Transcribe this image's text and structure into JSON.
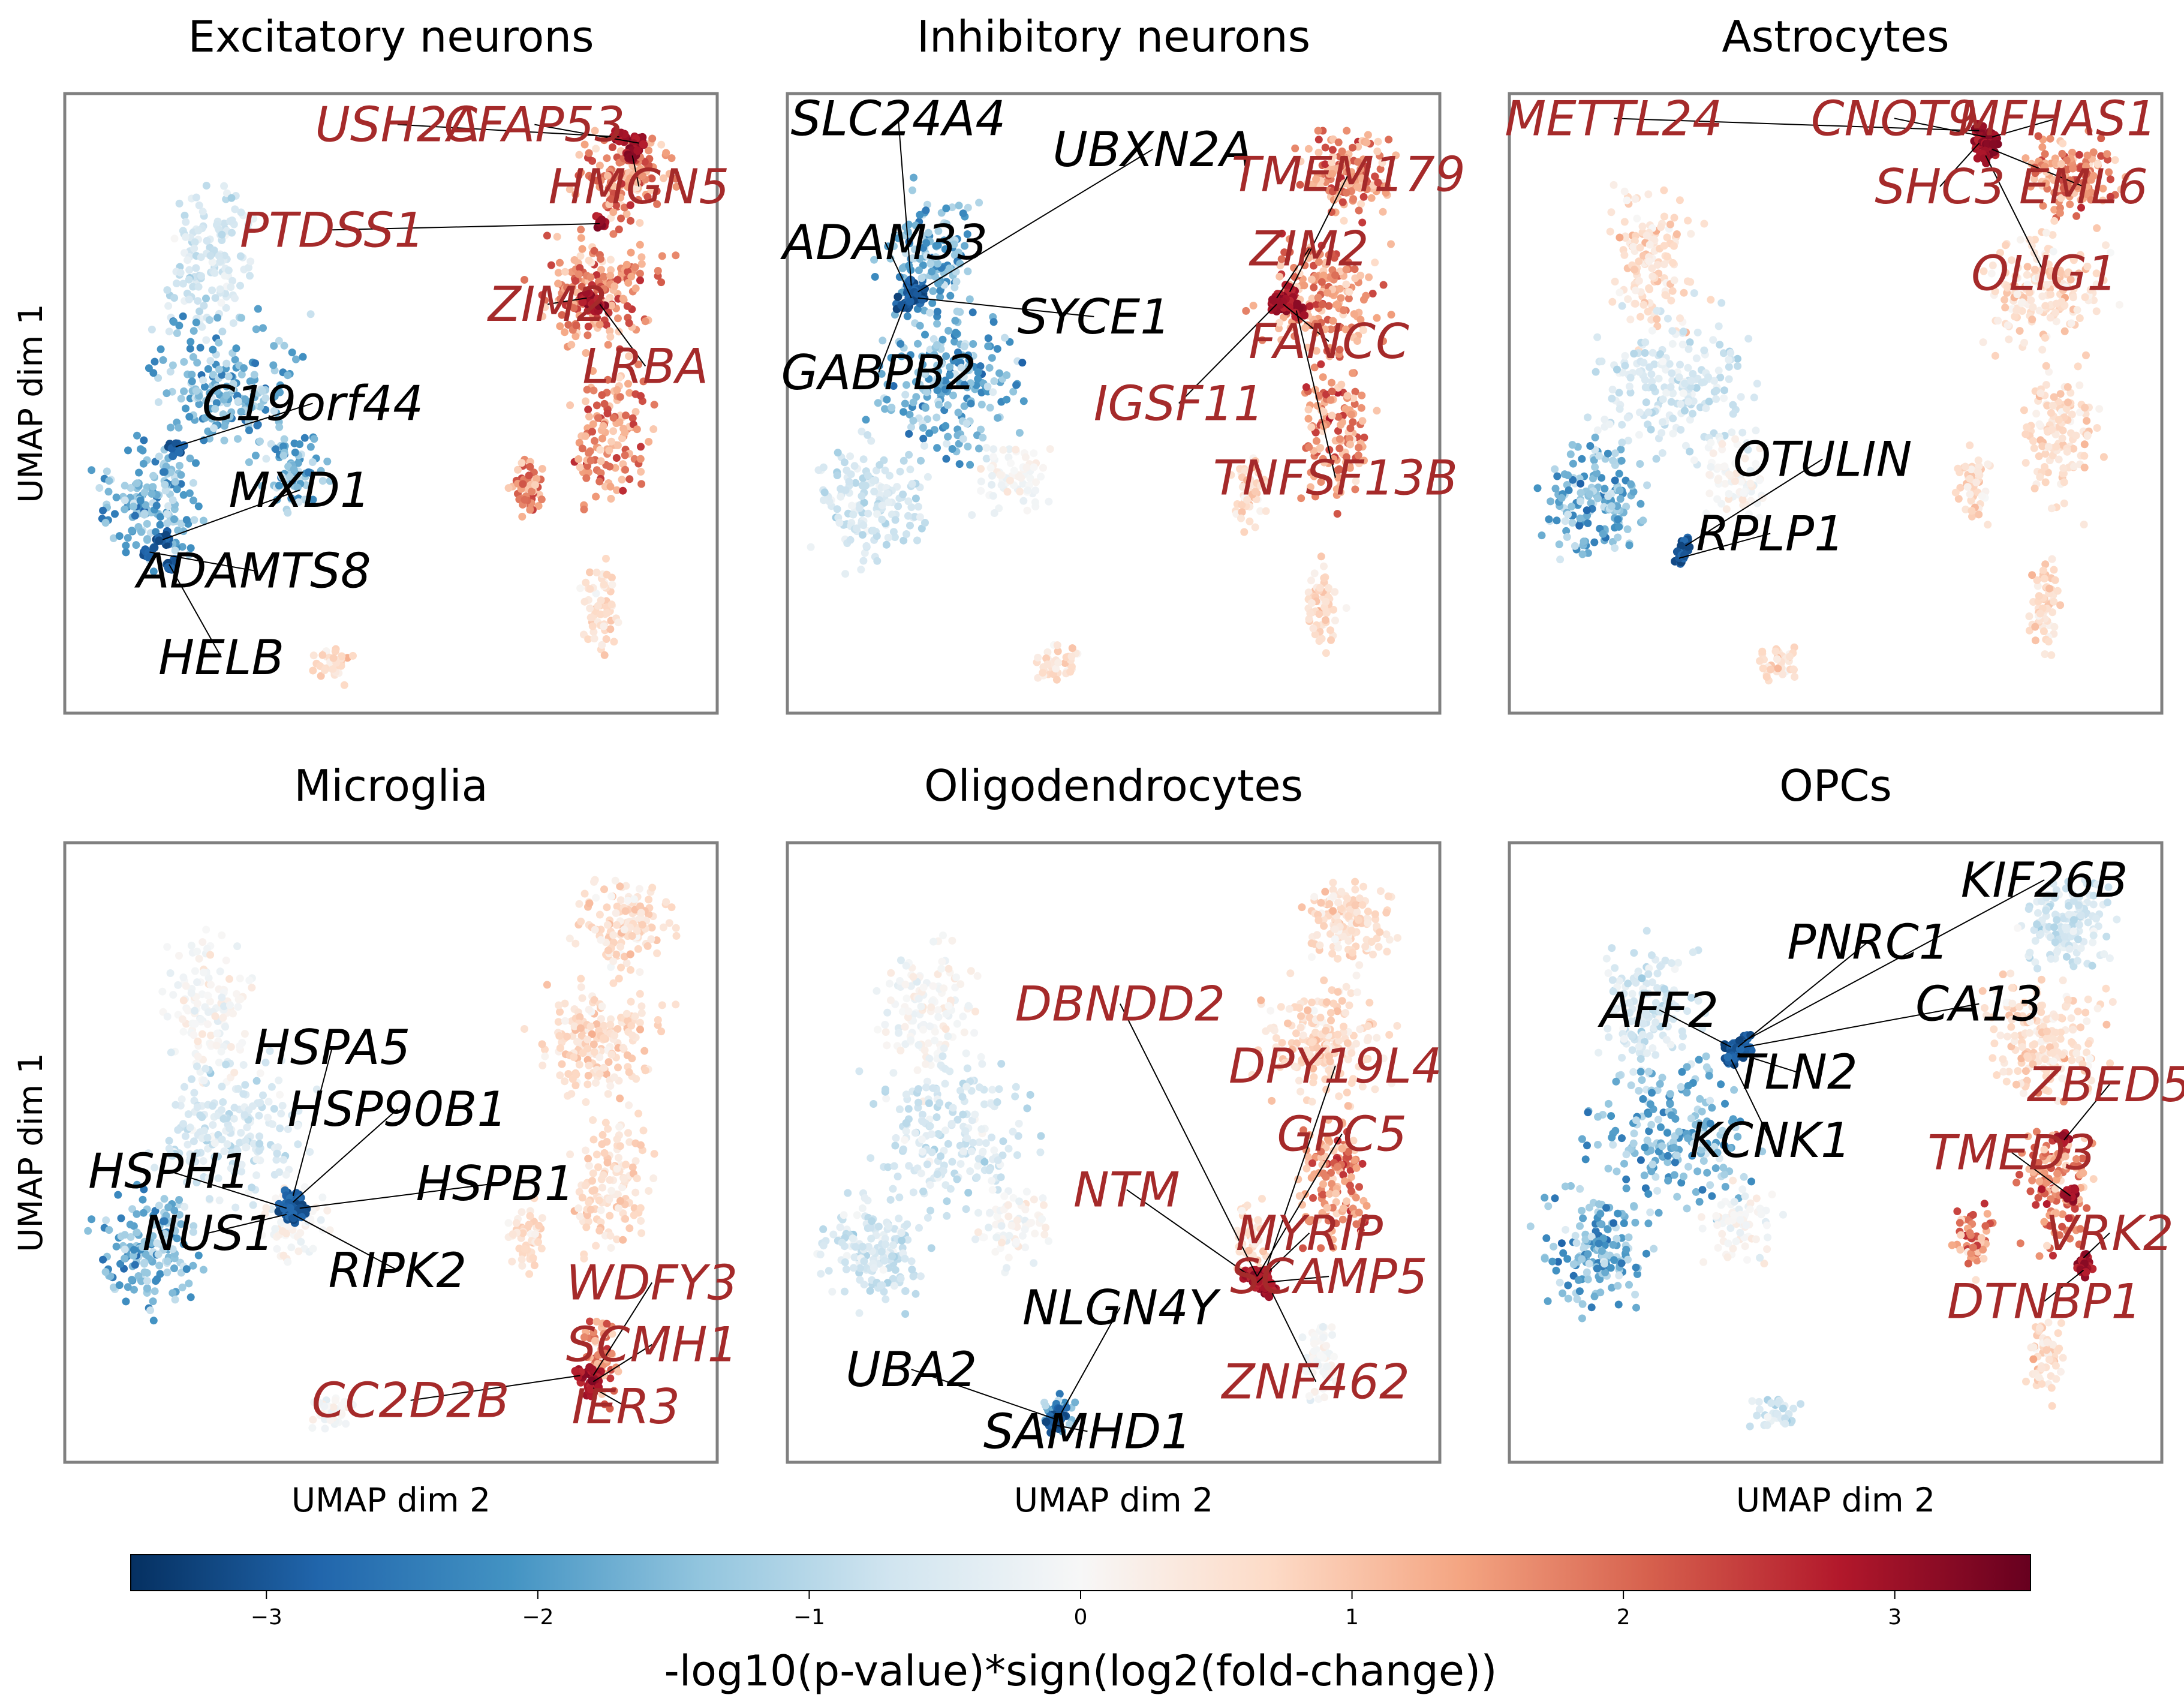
{
  "chart_data": {
    "type": "scatter",
    "description_of_axes": "UMAP embedding",
    "xlabel": "UMAP dim 2",
    "ylabel": "UMAP dim 1",
    "colormap": {
      "name": "RdBu_r",
      "low": "#053061",
      "mid": "#f7f7f7",
      "high": "#67001f"
    },
    "color_label": "-log10(p-value)*sign(log2(fold-change))",
    "color_range": [
      -3.5,
      3.5
    ],
    "color_ticks": [
      -3,
      -2,
      -1,
      0,
      1,
      2,
      3
    ],
    "color_tick_labels": [
      "−3",
      "−2",
      "−1",
      "0",
      "1",
      "2",
      "3"
    ],
    "label_colors": {
      "up": "#a52a2a",
      "down": "#000000"
    },
    "panels": [
      {
        "title": "Excitatory neurons",
        "pattern": {
          "up": [
            "rightA",
            "rightB",
            "rightC",
            "rightD"
          ],
          "down": [
            "leftB",
            "leftC",
            "leftD"
          ],
          "mild_up": [
            "bottomA",
            "bottomB"
          ],
          "mild_down": [
            "leftA"
          ]
        },
        "genes": [
          {
            "name": "USH2A",
            "dir": "up",
            "label": [
              0.51,
              0.05
            ],
            "point": [
              0.85,
              0.07
            ]
          },
          {
            "name": "CFAP53",
            "dir": "up",
            "label": [
              0.72,
              0.05
            ],
            "point": [
              0.88,
              0.08
            ]
          },
          {
            "name": "HMGN5",
            "dir": "up",
            "label": [
              0.88,
              0.15
            ],
            "point": [
              0.87,
              0.1
            ]
          },
          {
            "name": "PTDSS1",
            "dir": "up",
            "label": [
              0.41,
              0.22
            ],
            "point": [
              0.82,
              0.21
            ]
          },
          {
            "name": "ZIM2",
            "dir": "up",
            "label": [
              0.74,
              0.34
            ],
            "point": [
              0.8,
              0.33
            ]
          },
          {
            "name": "LRBA",
            "dir": "up",
            "label": [
              0.89,
              0.44
            ],
            "point": [
              0.82,
              0.34
            ]
          },
          {
            "name": "C19orf44",
            "dir": "down",
            "label": [
              0.38,
              0.5
            ],
            "point": [
              0.17,
              0.57
            ]
          },
          {
            "name": "MXD1",
            "dir": "down",
            "label": [
              0.36,
              0.64
            ],
            "point": [
              0.15,
              0.72
            ]
          },
          {
            "name": "ADAMTS8",
            "dir": "down",
            "label": [
              0.29,
              0.77
            ],
            "point": [
              0.13,
              0.74
            ]
          },
          {
            "name": "HELB",
            "dir": "down",
            "label": [
              0.24,
              0.91
            ],
            "point": [
              0.16,
              0.76
            ]
          }
        ]
      },
      {
        "title": "Inhibitory neurons",
        "pattern": {
          "up": [
            "rightA",
            "rightB",
            "rightC"
          ],
          "down": [
            "leftA",
            "leftB"
          ],
          "mild_up": [
            "rightD",
            "bottomA",
            "bottomB"
          ],
          "mild_down": [
            "leftC"
          ]
        },
        "genes": [
          {
            "name": "SLC24A4",
            "dir": "down",
            "label": [
              0.17,
              0.04
            ],
            "point": [
              0.19,
              0.31
            ]
          },
          {
            "name": "UBXN2A",
            "dir": "down",
            "label": [
              0.56,
              0.09
            ],
            "point": [
              0.2,
              0.32
            ]
          },
          {
            "name": "TMEM179",
            "dir": "up",
            "label": [
              0.86,
              0.13
            ],
            "point": [
              0.77,
              0.32
            ]
          },
          {
            "name": "ADAM33",
            "dir": "down",
            "label": [
              0.15,
              0.24
            ],
            "point": [
              0.19,
              0.33
            ]
          },
          {
            "name": "ZIM2",
            "dir": "up",
            "label": [
              0.8,
              0.25
            ],
            "point": [
              0.75,
              0.33
            ]
          },
          {
            "name": "SYCE1",
            "dir": "down",
            "label": [
              0.47,
              0.36
            ],
            "point": [
              0.2,
              0.33
            ]
          },
          {
            "name": "FANCC",
            "dir": "up",
            "label": [
              0.83,
              0.4
            ],
            "point": [
              0.76,
              0.34
            ]
          },
          {
            "name": "GABPB2",
            "dir": "down",
            "label": [
              0.14,
              0.45
            ],
            "point": [
              0.18,
              0.34
            ]
          },
          {
            "name": "IGSF11",
            "dir": "up",
            "label": [
              0.6,
              0.5
            ],
            "point": [
              0.75,
              0.34
            ]
          },
          {
            "name": "TNFSF13B",
            "dir": "up",
            "label": [
              0.84,
              0.62
            ],
            "point": [
              0.78,
              0.35
            ]
          }
        ]
      },
      {
        "title": "Astrocytes",
        "pattern": {
          "up": [
            "rightA"
          ],
          "down": [
            "leftC"
          ],
          "mild_up": [
            "rightB",
            "rightC",
            "rightD",
            "bottomA",
            "bottomB",
            "leftA"
          ],
          "mild_down": [
            "leftB"
          ]
        },
        "genes": [
          {
            "name": "METTL24",
            "dir": "up",
            "label": [
              0.16,
              0.04
            ],
            "point": [
              0.72,
              0.06
            ]
          },
          {
            "name": "CNOT9",
            "dir": "up",
            "label": [
              0.59,
              0.04
            ],
            "point": [
              0.73,
              0.07
            ]
          },
          {
            "name": "MFHAS1",
            "dir": "up",
            "label": [
              0.84,
              0.04
            ],
            "point": [
              0.74,
              0.07
            ]
          },
          {
            "name": "SHC3",
            "dir": "up",
            "label": [
              0.66,
              0.15
            ],
            "point": [
              0.72,
              0.08
            ]
          },
          {
            "name": "EML6",
            "dir": "up",
            "label": [
              0.88,
              0.15
            ],
            "point": [
              0.74,
              0.09
            ]
          },
          {
            "name": "OLIG1",
            "dir": "up",
            "label": [
              0.82,
              0.29
            ],
            "point": [
              0.73,
              0.1
            ]
          },
          {
            "name": "OTULIN",
            "dir": "down",
            "label": [
              0.48,
              0.59
            ],
            "point": [
              0.27,
              0.73
            ]
          },
          {
            "name": "RPLP1",
            "dir": "down",
            "label": [
              0.4,
              0.71
            ],
            "point": [
              0.26,
              0.75
            ]
          }
        ]
      },
      {
        "title": "Microglia",
        "pattern": {
          "up": [
            "bottomA"
          ],
          "down": [
            "leftC"
          ],
          "mild_up": [
            "rightA",
            "rightB",
            "rightC",
            "rightD"
          ],
          "mild_down": [
            "leftB"
          ]
        },
        "genes": [
          {
            "name": "HSPA5",
            "dir": "down",
            "label": [
              0.41,
              0.33
            ],
            "point": [
              0.35,
              0.57
            ]
          },
          {
            "name": "HSP90B1",
            "dir": "down",
            "label": [
              0.51,
              0.43
            ],
            "point": [
              0.35,
              0.58
            ]
          },
          {
            "name": "HSPH1",
            "dir": "down",
            "label": [
              0.16,
              0.53
            ],
            "point": [
              0.34,
              0.59
            ]
          },
          {
            "name": "HSPB1",
            "dir": "down",
            "label": [
              0.66,
              0.55
            ],
            "point": [
              0.36,
              0.59
            ]
          },
          {
            "name": "NUS1",
            "dir": "down",
            "label": [
              0.22,
              0.63
            ],
            "point": [
              0.34,
              0.6
            ]
          },
          {
            "name": "RIPK2",
            "dir": "down",
            "label": [
              0.51,
              0.69
            ],
            "point": [
              0.35,
              0.6
            ]
          },
          {
            "name": "WDFY3",
            "dir": "up",
            "label": [
              0.9,
              0.71
            ],
            "point": [
              0.81,
              0.86
            ]
          },
          {
            "name": "SCMH1",
            "dir": "up",
            "label": [
              0.9,
              0.81
            ],
            "point": [
              0.81,
              0.87
            ]
          },
          {
            "name": "CC2D2B",
            "dir": "up",
            "label": [
              0.53,
              0.9
            ],
            "point": [
              0.79,
              0.86
            ]
          },
          {
            "name": "IER3",
            "dir": "up",
            "label": [
              0.86,
              0.91
            ],
            "point": [
              0.81,
              0.88
            ]
          }
        ]
      },
      {
        "title": "Oligodendrocytes",
        "pattern": {
          "up": [
            "rightC"
          ],
          "down": [
            "bottomB"
          ],
          "mild_up": [
            "rightA",
            "rightB",
            "rightD"
          ],
          "mild_down": [
            "leftB",
            "leftC"
          ]
        },
        "genes": [
          {
            "name": "DBNDD2",
            "dir": "up",
            "label": [
              0.51,
              0.26
            ],
            "point": [
              0.72,
              0.7
            ]
          },
          {
            "name": "DPY19L4",
            "dir": "up",
            "label": [
              0.84,
              0.36
            ],
            "point": [
              0.73,
              0.7
            ]
          },
          {
            "name": "GPC5",
            "dir": "up",
            "label": [
              0.85,
              0.47
            ],
            "point": [
              0.72,
              0.7
            ]
          },
          {
            "name": "NTM",
            "dir": "up",
            "label": [
              0.52,
              0.56
            ],
            "point": [
              0.71,
              0.7
            ]
          },
          {
            "name": "MYRIP",
            "dir": "up",
            "label": [
              0.8,
              0.63
            ],
            "point": [
              0.72,
              0.71
            ]
          },
          {
            "name": "SCAMP5",
            "dir": "up",
            "label": [
              0.83,
              0.7
            ],
            "point": [
              0.73,
              0.71
            ]
          },
          {
            "name": "NLGN4Y",
            "dir": "down",
            "label": [
              0.51,
              0.75
            ],
            "point": [
              0.42,
              0.92
            ]
          },
          {
            "name": "UBA2",
            "dir": "down",
            "label": [
              0.19,
              0.85
            ],
            "point": [
              0.41,
              0.93
            ]
          },
          {
            "name": "ZNF462",
            "dir": "up",
            "label": [
              0.81,
              0.87
            ],
            "point": [
              0.74,
              0.72
            ]
          },
          {
            "name": "SAMHD1",
            "dir": "down",
            "label": [
              0.46,
              0.95
            ],
            "point": [
              0.41,
              0.94
            ]
          }
        ]
      },
      {
        "title": "OPCs",
        "pattern": {
          "up": [
            "rightC",
            "rightD"
          ],
          "down": [
            "leftB",
            "leftC"
          ],
          "mild_up": [
            "rightB",
            "bottomA"
          ],
          "mild_down": [
            "leftA",
            "rightA",
            "bottomB"
          ]
        },
        "genes": [
          {
            "name": "KIF26B",
            "dir": "down",
            "label": [
              0.82,
              0.06
            ],
            "point": [
              0.36,
              0.32
            ]
          },
          {
            "name": "PNRC1",
            "dir": "down",
            "label": [
              0.55,
              0.16
            ],
            "point": [
              0.35,
              0.33
            ]
          },
          {
            "name": "AFF2",
            "dir": "down",
            "label": [
              0.23,
              0.27
            ],
            "point": [
              0.34,
              0.33
            ]
          },
          {
            "name": "CA13",
            "dir": "down",
            "label": [
              0.72,
              0.26
            ],
            "point": [
              0.36,
              0.33
            ]
          },
          {
            "name": "TLN2",
            "dir": "down",
            "label": [
              0.44,
              0.37
            ],
            "point": [
              0.35,
              0.34
            ]
          },
          {
            "name": "ZBED5",
            "dir": "up",
            "label": [
              0.92,
              0.39
            ],
            "point": [
              0.85,
              0.48
            ]
          },
          {
            "name": "KCNK1",
            "dir": "down",
            "label": [
              0.4,
              0.48
            ],
            "point": [
              0.34,
              0.35
            ]
          },
          {
            "name": "TMED3",
            "dir": "up",
            "label": [
              0.77,
              0.5
            ],
            "point": [
              0.86,
              0.57
            ]
          },
          {
            "name": "VRK2",
            "dir": "up",
            "label": [
              0.92,
              0.63
            ],
            "point": [
              0.88,
              0.67
            ]
          },
          {
            "name": "DTNBP1",
            "dir": "up",
            "label": [
              0.82,
              0.74
            ],
            "point": [
              0.88,
              0.69
            ]
          }
        ]
      }
    ]
  }
}
